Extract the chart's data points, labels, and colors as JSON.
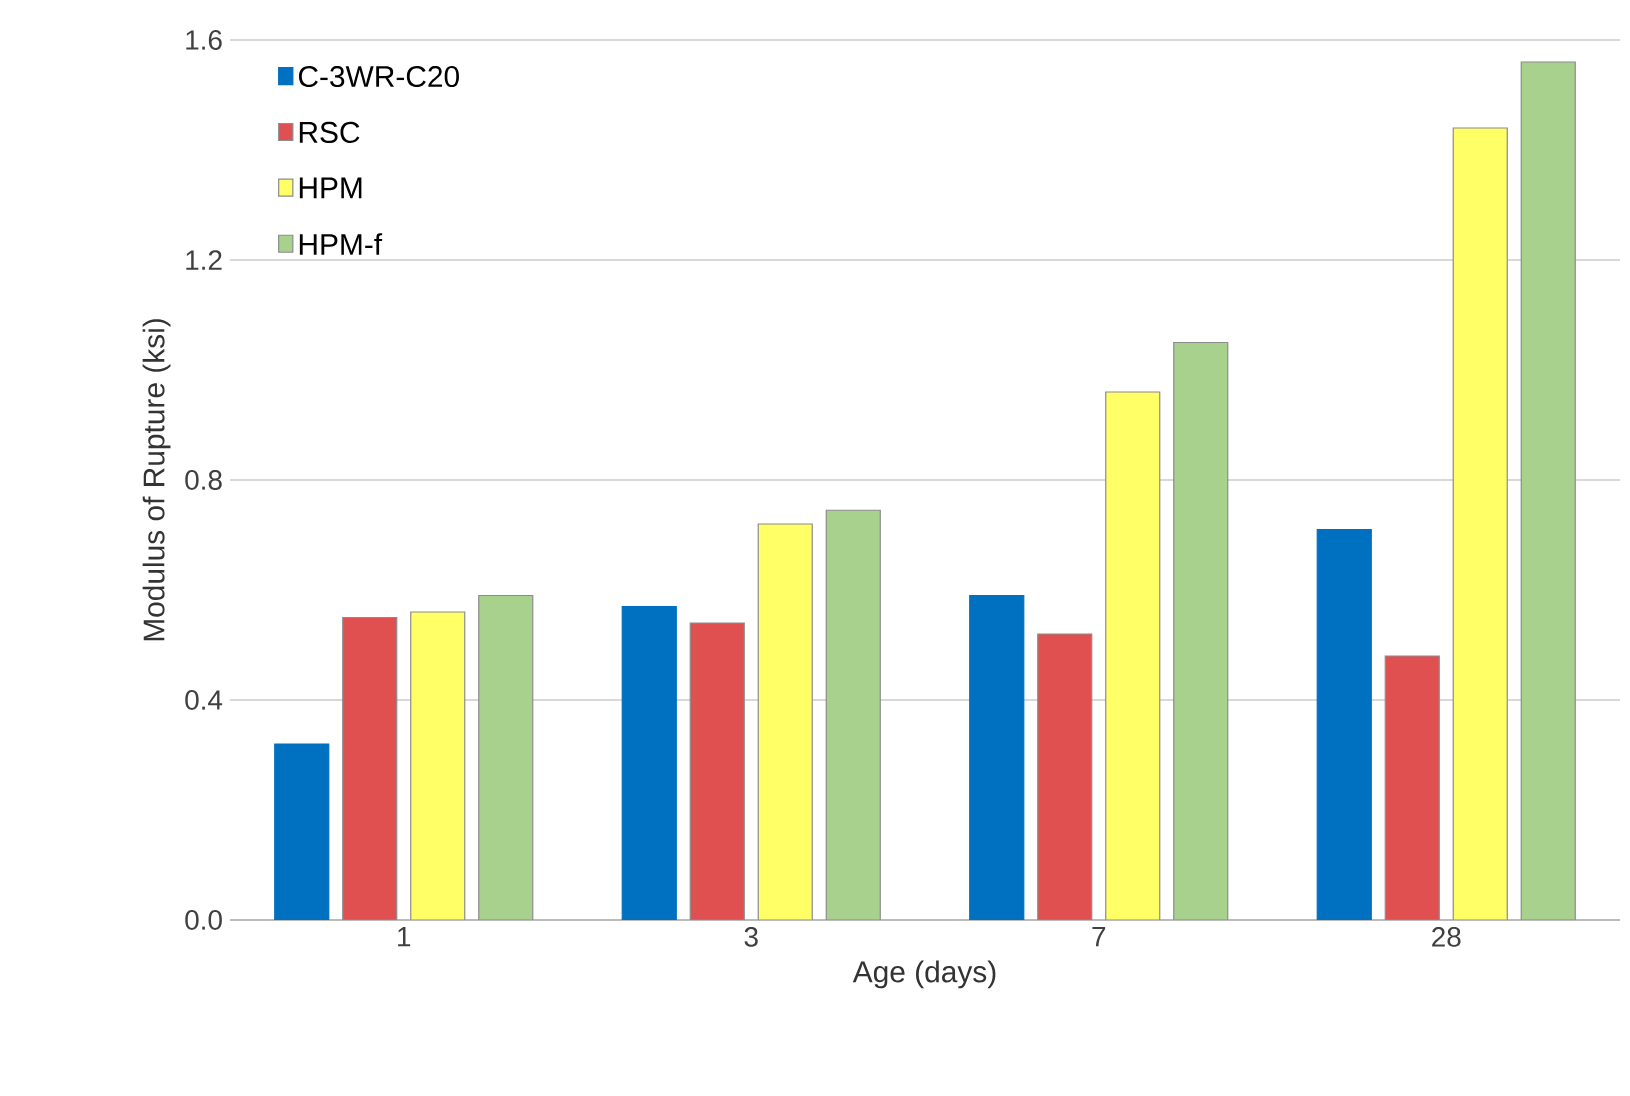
{
  "chart_data": {
    "type": "bar",
    "xlabel": "Age (days)",
    "ylabel": "Modulus of Rupture (ksi)",
    "categories": [
      "1",
      "3",
      "7",
      "28"
    ],
    "series": [
      {
        "name": "C-3WR-C20",
        "color": "#0070c0",
        "values": [
          0.32,
          0.57,
          0.59,
          0.71
        ]
      },
      {
        "name": "RSC",
        "color": "#e05050",
        "values": [
          0.55,
          0.54,
          0.52,
          0.48
        ]
      },
      {
        "name": "HPM",
        "color": "#ffff66",
        "values": [
          0.56,
          0.72,
          0.96,
          1.44
        ]
      },
      {
        "name": "HPM-f",
        "color": "#a9d18e",
        "values": [
          0.59,
          0.745,
          1.05,
          1.56
        ]
      }
    ],
    "ylim": [
      0,
      1.6
    ],
    "yticks": [
      {
        "value": 0,
        "label": "0.0"
      },
      {
        "value": 0.4,
        "label": "0.4"
      },
      {
        "value": 0.8,
        "label": "0.8"
      },
      {
        "value": 1.2,
        "label": "1.2"
      },
      {
        "value": 1.6,
        "label": "1.6"
      }
    ],
    "grid": "y",
    "legend": "top left"
  }
}
